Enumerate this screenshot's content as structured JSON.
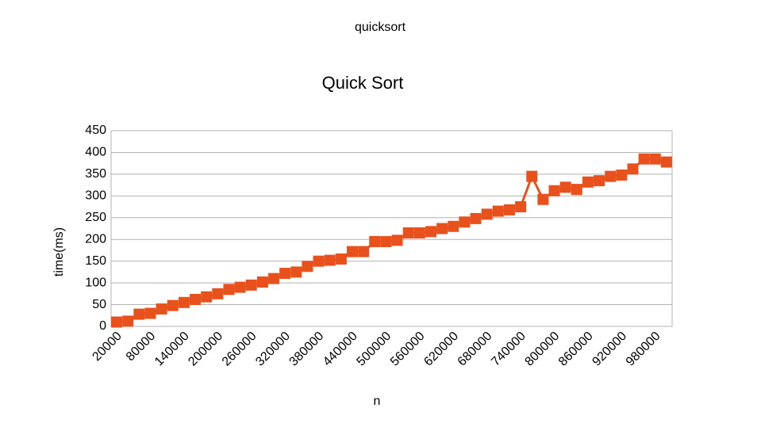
{
  "chart_data": {
    "type": "line",
    "suptitle": "quicksort",
    "title": "Quick Sort",
    "xlabel": "n",
    "ylabel": "time(ms)",
    "categories": [
      "20000",
      null,
      null,
      "80000",
      null,
      null,
      "140000",
      null,
      null,
      "200000",
      null,
      null,
      "260000",
      null,
      null,
      "320000",
      null,
      null,
      "380000",
      null,
      null,
      "440000",
      null,
      null,
      "500000",
      null,
      null,
      "560000",
      null,
      null,
      "620000",
      null,
      null,
      "680000",
      null,
      null,
      "740000",
      null,
      null,
      "800000",
      null,
      null,
      "860000",
      null,
      null,
      "920000",
      null,
      null,
      "980000",
      null
    ],
    "values": [
      10,
      12,
      28,
      30,
      40,
      48,
      55,
      62,
      68,
      75,
      85,
      90,
      95,
      102,
      110,
      122,
      125,
      138,
      150,
      152,
      155,
      172,
      172,
      195,
      195,
      198,
      215,
      215,
      218,
      225,
      230,
      240,
      248,
      258,
      265,
      268,
      275,
      345,
      292,
      312,
      320,
      315,
      332,
      335,
      345,
      348,
      362,
      385,
      385,
      378
    ],
    "color": "#e8501c",
    "ylim": [
      0,
      450
    ],
    "yticks": [
      0,
      50,
      100,
      150,
      200,
      250,
      300,
      350,
      400,
      450
    ],
    "grid": true
  }
}
